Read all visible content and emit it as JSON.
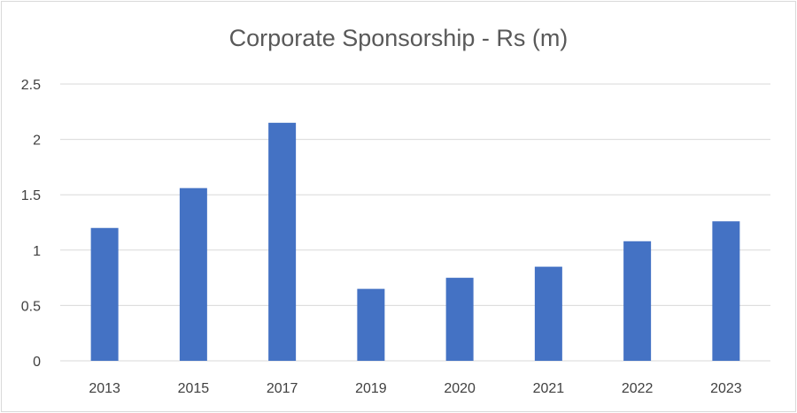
{
  "chart_data": {
    "type": "bar",
    "title": "Corporate Sponsorship - Rs (m)",
    "xlabel": "",
    "ylabel": "",
    "categories": [
      "2013",
      "2015",
      "2017",
      "2019",
      "2020",
      "2021",
      "2022",
      "2023"
    ],
    "values": [
      1.2,
      1.56,
      2.15,
      0.65,
      0.75,
      0.85,
      1.08,
      1.26
    ],
    "ylim": [
      0,
      2.5
    ],
    "yticks": [
      "0",
      "0.5",
      "1",
      "1.5",
      "2",
      "2.5"
    ],
    "grid": true,
    "legend": "none",
    "bar_color": "#4472C4",
    "grid_color": "#d9d9d9"
  }
}
